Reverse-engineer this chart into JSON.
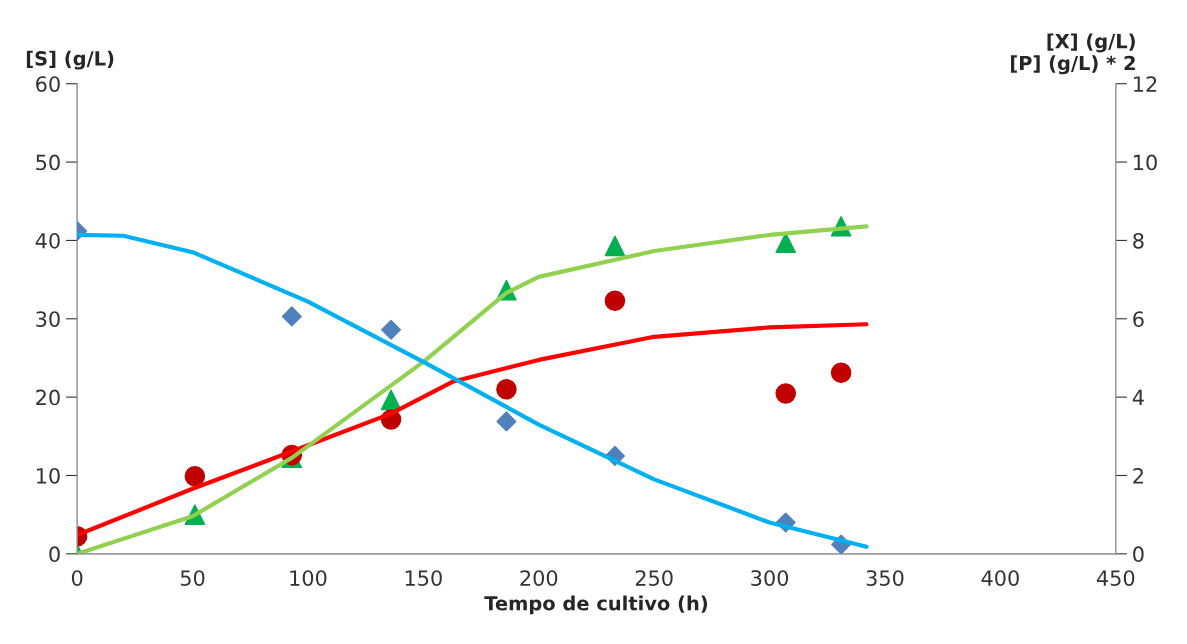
{
  "chart_data": {
    "type": "scatter",
    "xlabel": "Tempo de cultivo (h)",
    "ylabel": "[S] (g/L)",
    "y2label": "[X] (g/L)\n[P] (g/L) * 2",
    "xlim": [
      0,
      450
    ],
    "xticks": [
      0,
      50,
      100,
      150,
      200,
      250,
      300,
      350,
      400,
      450
    ],
    "ylim": [
      0,
      60
    ],
    "yticks": [
      0,
      10,
      20,
      30,
      40,
      50,
      60
    ],
    "y2lim": [
      0,
      12
    ],
    "y2ticks": [
      0,
      2,
      4,
      6,
      8,
      10,
      12
    ],
    "grid": false,
    "legend": false,
    "series": [
      {
        "type": "line",
        "color": "#00b0f0",
        "marker": "none",
        "x": [
          0,
          20,
          50,
          100,
          150,
          200,
          250,
          300,
          342
        ],
        "values": [
          40.7,
          40.6,
          38.5,
          32.2,
          24.5,
          16.5,
          9.5,
          4.0,
          0.9
        ]
      },
      {
        "type": "line",
        "color": "#ff0000",
        "marker": "none",
        "axis": "y2",
        "x": [
          0,
          50,
          100,
          136,
          163,
          200,
          250,
          300,
          342
        ],
        "values": [
          0.48,
          1.66,
          2.77,
          3.58,
          4.4,
          4.95,
          5.54,
          5.78,
          5.86
        ]
      },
      {
        "type": "line",
        "color": "#92d050",
        "marker": "none",
        "axis": "y2",
        "x": [
          0,
          50,
          93,
          150,
          186,
          200,
          250,
          300,
          342
        ],
        "values": [
          0,
          0.96,
          2.45,
          4.9,
          6.66,
          7.07,
          7.73,
          8.14,
          8.36
        ]
      },
      {
        "color": "#4f81bd",
        "marker": "diamond",
        "x": [
          0,
          93,
          136,
          186,
          233,
          307,
          331
        ],
        "values": [
          41.2,
          30.3,
          28.6,
          16.9,
          12.5,
          4.0,
          1.2
        ]
      },
      {
        "color": "#00b050",
        "marker": "triangle",
        "axis": "y2",
        "x": [
          0,
          51,
          93,
          136,
          186,
          233,
          307,
          331
        ],
        "values": [
          0,
          1.0,
          2.45,
          3.93,
          6.73,
          7.86,
          7.94,
          8.36
        ]
      },
      {
        "color": "#c00000",
        "marker": "circle",
        "axis": "y2",
        "x": [
          0,
          51,
          93,
          136,
          186,
          233,
          307,
          331
        ],
        "values": [
          0.45,
          1.98,
          2.52,
          3.43,
          4.2,
          6.46,
          4.09,
          4.62
        ]
      }
    ]
  }
}
